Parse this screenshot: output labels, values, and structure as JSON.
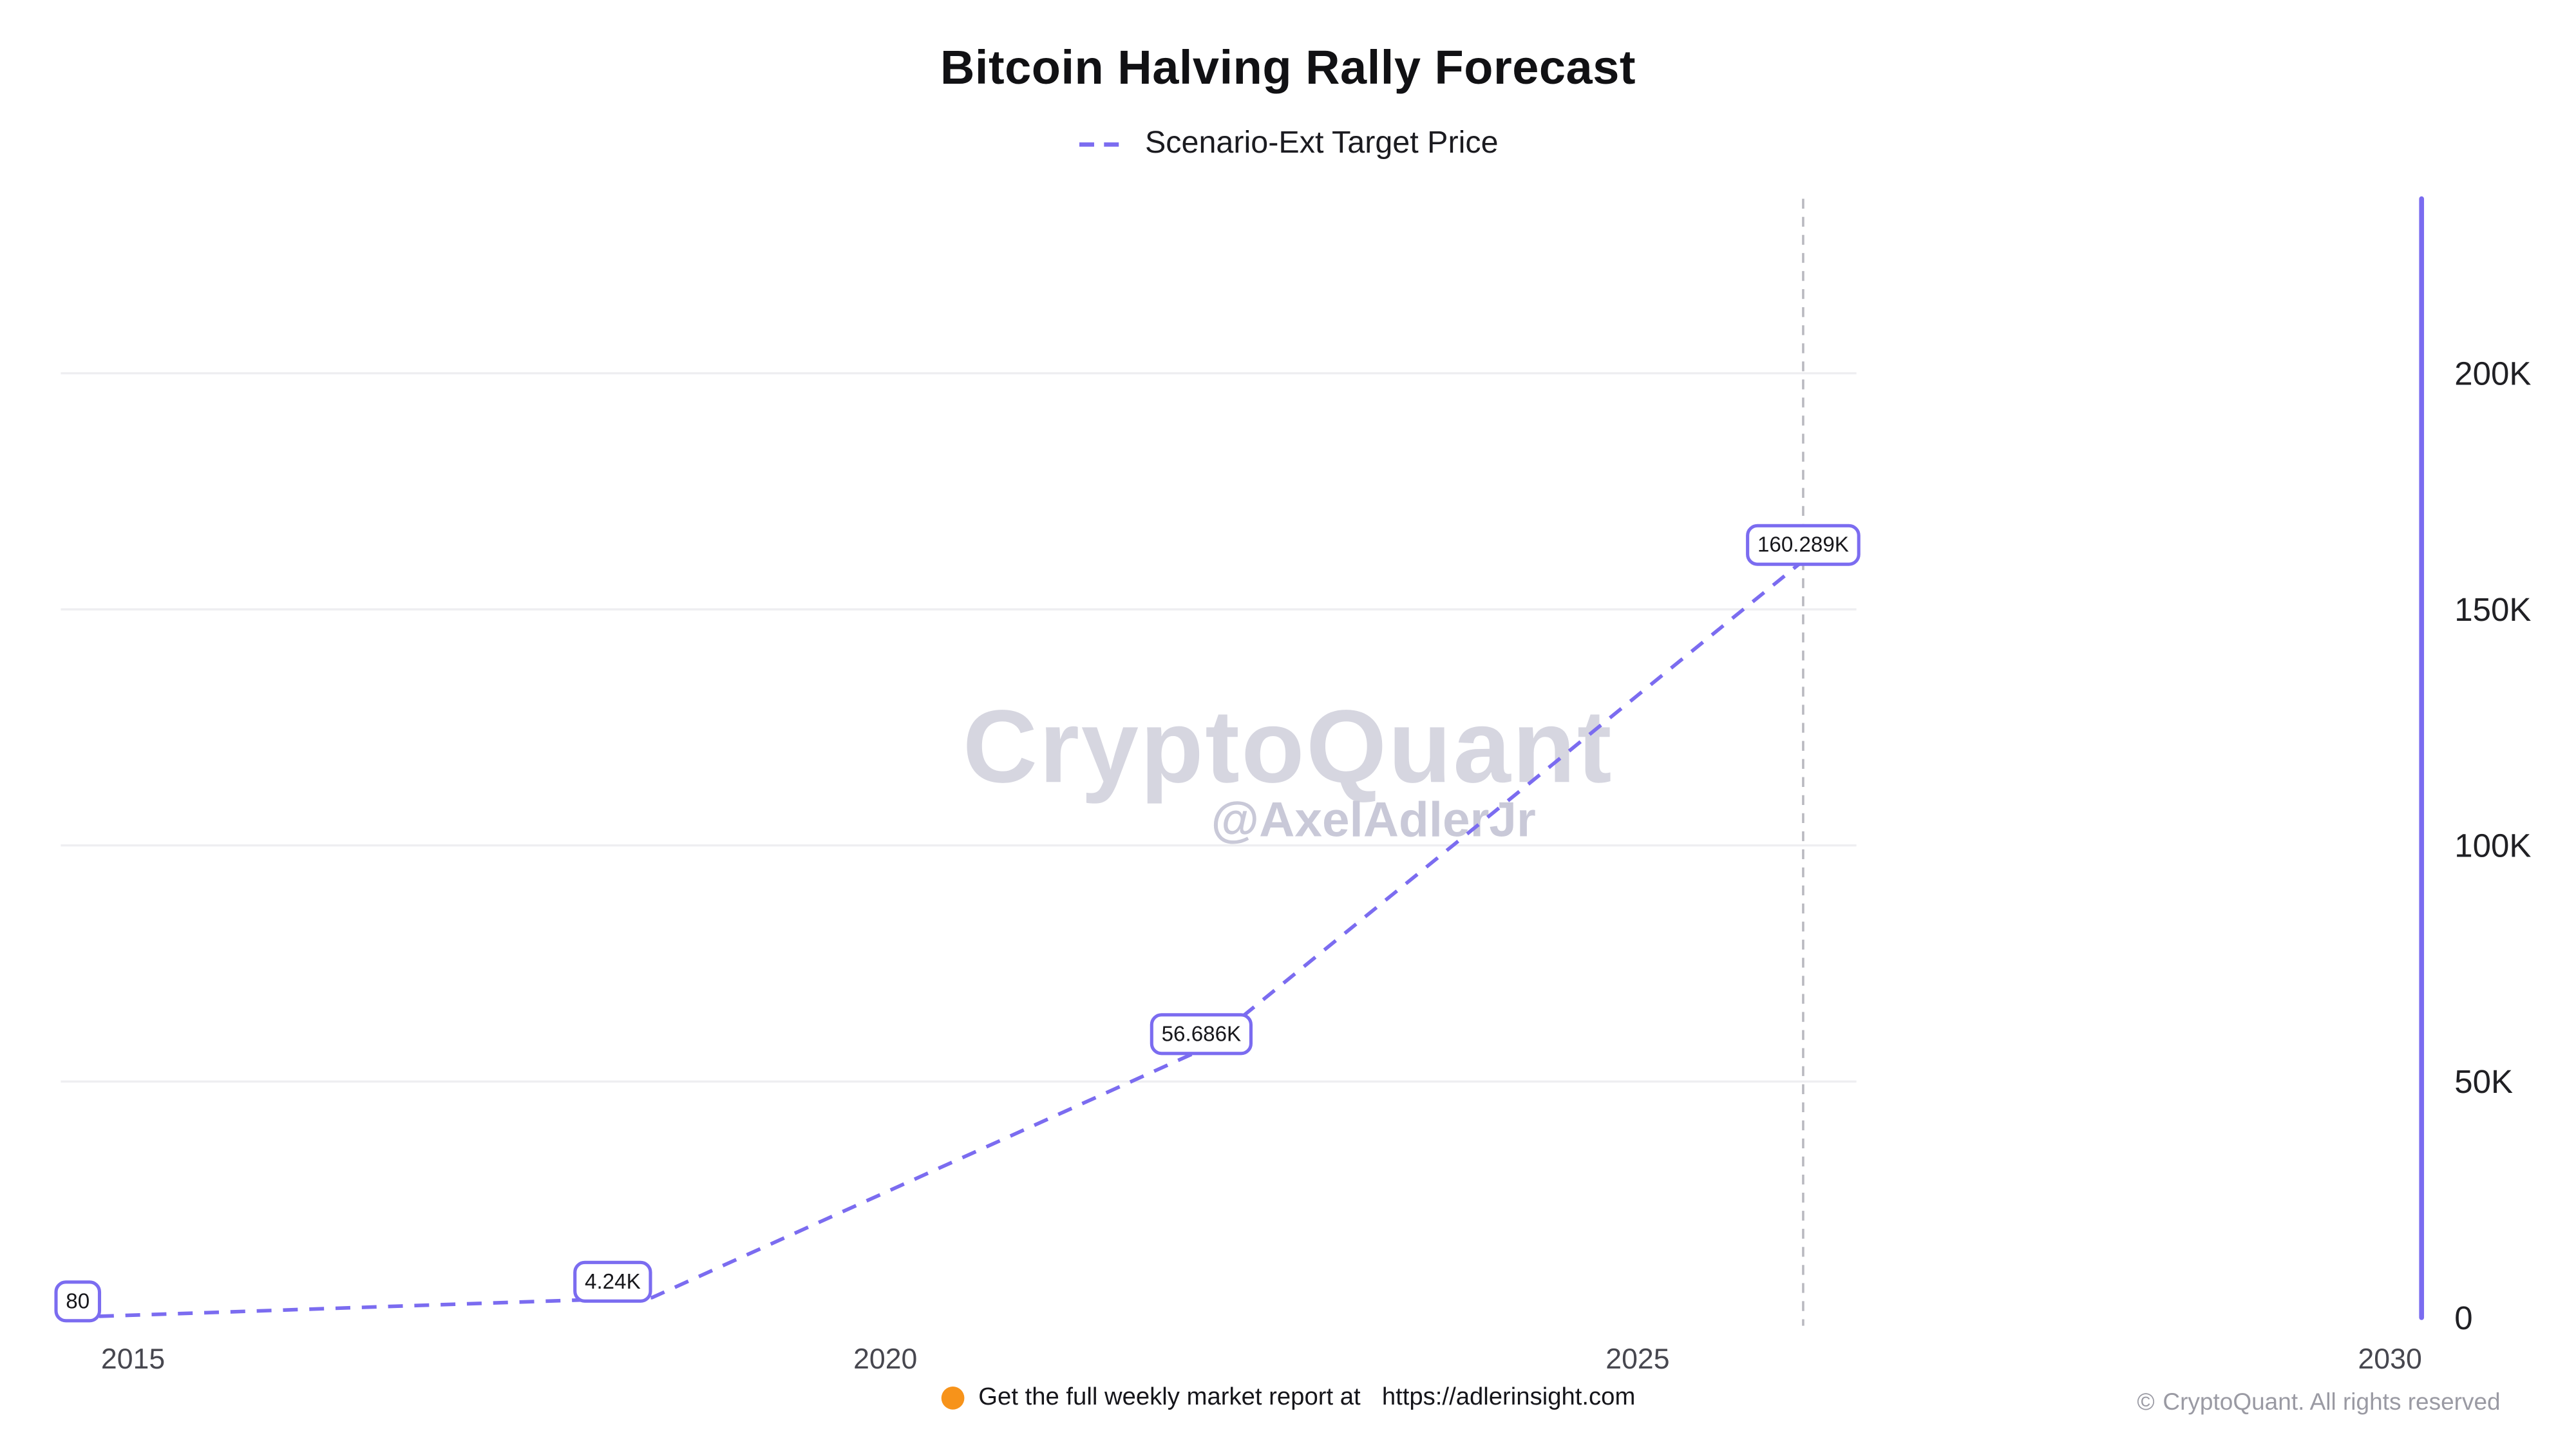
{
  "title": "Bitcoin Halving Rally Forecast",
  "legend": {
    "label": "Scenario-Ext Target Price"
  },
  "watermark": {
    "line1": "CryptoQuant",
    "line2": "@AxelAdlerJr"
  },
  "footer": {
    "promo_prefix": "Get the full weekly market report at",
    "promo_url": "https://adlerinsight.com",
    "copyright_icon": "©",
    "copyright_text": "CryptoQuant. All rights reserved"
  },
  "colors": {
    "accent": "#7b6cf0",
    "grid": "#eeeef1",
    "guide": "#b9b9c0",
    "text": "#17171b",
    "tick_x": "#47474f",
    "tick_y": "#202024",
    "muted": "#9a9aa3",
    "promo_dot": "#f7931a"
  },
  "chart_data": {
    "type": "line",
    "style": "dashed",
    "title": "Bitcoin Halving Rally Forecast",
    "legend_position": "top",
    "grid": true,
    "x_range": [
      2014.52,
      2030.21
    ],
    "y_range": [
      0,
      230000
    ],
    "guide_x": 2026.1,
    "x_ticks": [
      {
        "value": 2015,
        "label": "2015"
      },
      {
        "value": 2020,
        "label": "2020"
      },
      {
        "value": 2025,
        "label": "2025"
      },
      {
        "value": 2030,
        "label": "2030"
      }
    ],
    "y_ticks": [
      {
        "value": 0,
        "label": "0"
      },
      {
        "value": 50000,
        "label": "50K"
      },
      {
        "value": 100000,
        "label": "100K"
      },
      {
        "value": 150000,
        "label": "150K"
      },
      {
        "value": 200000,
        "label": "200K"
      }
    ],
    "series": [
      {
        "name": "Scenario-Ext Target Price",
        "points": [
          {
            "x": 2014.6,
            "y": 80,
            "label": "80",
            "label_dx": 3
          },
          {
            "x": 2018.45,
            "y": 4240,
            "label": "4.24K",
            "label_dx": -24
          },
          {
            "x": 2022.1,
            "y": 56686,
            "label": "56.686K",
            "label_dx": 0
          },
          {
            "x": 2026.1,
            "y": 160289,
            "label": "160.289K",
            "label_dx": 0
          }
        ]
      }
    ]
  }
}
